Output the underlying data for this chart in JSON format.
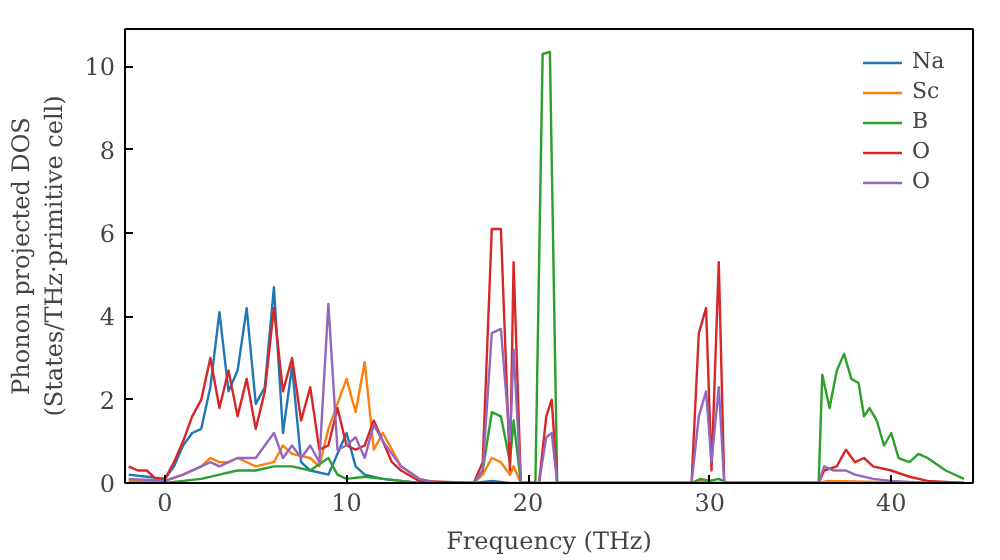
{
  "chart_data": {
    "type": "line",
    "xlabel": "Frequency (THz)",
    "ylabel": "Phonon projected DOS\n(States/THz·primitive cell)",
    "xlim": [
      -2.2,
      44.5
    ],
    "ylim": [
      0,
      10.9
    ],
    "xticks": [
      0,
      10,
      20,
      30,
      40
    ],
    "yticks": [
      0,
      2,
      4,
      6,
      8,
      10
    ],
    "grid": false,
    "legend": "top right",
    "series": [
      {
        "name": "Na",
        "color": "#1f77b4",
        "x": [
          -2,
          -1,
          0,
          0.5,
          1,
          1.5,
          2,
          2.5,
          3,
          3.5,
          4,
          4.5,
          5,
          5.5,
          6,
          6.5,
          7,
          7.5,
          8,
          9,
          10,
          10.5,
          11,
          12,
          13,
          14,
          17,
          18,
          19,
          44
        ],
        "values": [
          0.2,
          0.15,
          0.1,
          0.4,
          0.9,
          1.2,
          1.3,
          2.3,
          4.1,
          2.2,
          2.7,
          4.2,
          1.9,
          2.3,
          4.7,
          1.2,
          2.8,
          0.5,
          0.3,
          0.2,
          1.2,
          0.4,
          0.2,
          0.1,
          0.05,
          0,
          0,
          0.05,
          0,
          0
        ]
      },
      {
        "name": "Sc",
        "color": "#ff7f0e",
        "x": [
          -2,
          0,
          1,
          2,
          2.5,
          3,
          3.5,
          4,
          5,
          6,
          6.5,
          7,
          8,
          8.5,
          9,
          10,
          10.5,
          11,
          11.5,
          12,
          13,
          14,
          15,
          17,
          17.5,
          18,
          18.5,
          19,
          19.2,
          19.6,
          29,
          29.5,
          30,
          36,
          36.5,
          40,
          44
        ],
        "values": [
          0.05,
          0.05,
          0.2,
          0.4,
          0.6,
          0.5,
          0.5,
          0.6,
          0.4,
          0.5,
          0.9,
          0.7,
          0.6,
          0.4,
          1.3,
          2.5,
          1.7,
          2.9,
          0.8,
          1.2,
          0.4,
          0.1,
          0,
          0,
          0.2,
          0.6,
          0.5,
          0.2,
          0.4,
          0,
          0,
          0.05,
          0,
          0,
          0.05,
          0.02,
          0
        ]
      },
      {
        "name": "B",
        "color": "#2ca02c",
        "x": [
          -2,
          0,
          1,
          2,
          3,
          4,
          5,
          6,
          7,
          8,
          9,
          9.5,
          10,
          11,
          12,
          13,
          14,
          17,
          17.5,
          18,
          18.5,
          19,
          19.2,
          19.6,
          20.4,
          20.8,
          21.2,
          21.6,
          29,
          29.5,
          30,
          30.5,
          31,
          36,
          36.2,
          36.6,
          37,
          37.4,
          37.8,
          38.2,
          38.5,
          38.8,
          39.2,
          39.6,
          40,
          40.4,
          41,
          41.5,
          42,
          43,
          44
        ],
        "values": [
          0,
          0,
          0.05,
          0.1,
          0.2,
          0.3,
          0.3,
          0.4,
          0.4,
          0.3,
          0.6,
          0.2,
          0.1,
          0.15,
          0.1,
          0.05,
          0,
          0,
          0.3,
          1.7,
          1.6,
          0.5,
          1.5,
          0,
          0,
          10.3,
          10.35,
          0,
          0,
          0.1,
          0.05,
          0.1,
          0,
          0,
          2.6,
          1.8,
          2.7,
          3.1,
          2.5,
          2.4,
          1.6,
          1.8,
          1.5,
          0.9,
          1.2,
          0.6,
          0.5,
          0.7,
          0.6,
          0.3,
          0.1
        ]
      },
      {
        "name": "O",
        "color": "#d62728",
        "x": [
          -2,
          -1.5,
          -1,
          -0.5,
          0,
          0.5,
          1,
          1.5,
          2,
          2.5,
          3,
          3.5,
          4,
          4.5,
          5,
          5.5,
          6,
          6.5,
          7,
          7.5,
          8,
          8.5,
          9,
          9.5,
          10,
          10.5,
          11,
          11.5,
          12,
          12.5,
          13,
          14,
          17,
          17.5,
          18,
          18.5,
          19,
          19.2,
          19.6,
          20.6,
          21,
          21.3,
          21.6,
          29,
          29.4,
          29.8,
          30.1,
          30.5,
          30.8,
          36,
          36.3,
          37,
          37.5,
          38,
          38.5,
          39,
          40,
          41,
          42,
          44
        ],
        "values": [
          0.4,
          0.3,
          0.3,
          0.1,
          0.1,
          0.5,
          1.0,
          1.6,
          2.0,
          3.0,
          1.8,
          2.7,
          1.6,
          2.5,
          1.3,
          2.2,
          4.2,
          2.2,
          3.0,
          1.5,
          2.3,
          0.8,
          0.9,
          1.8,
          0.9,
          0.8,
          0.9,
          1.5,
          1.0,
          0.5,
          0.3,
          0.05,
          0,
          0.5,
          6.1,
          6.1,
          0.3,
          5.3,
          0,
          0,
          1.6,
          2.0,
          0,
          0,
          3.6,
          4.2,
          0.3,
          5.3,
          0,
          0,
          0.3,
          0.4,
          0.8,
          0.5,
          0.6,
          0.4,
          0.3,
          0.15,
          0.05,
          0
        ]
      },
      {
        "name": "O",
        "color": "#9467bd",
        "x": [
          -2,
          0,
          1,
          2,
          2.5,
          3,
          4,
          5,
          6,
          6.5,
          7,
          7.5,
          8,
          8.5,
          9,
          9.5,
          10,
          10.5,
          11,
          11.5,
          12,
          13,
          14,
          15,
          17,
          17.5,
          18,
          18.5,
          19,
          19.2,
          19.6,
          20.6,
          21,
          21.3,
          21.6,
          29,
          29.4,
          29.8,
          30.1,
          30.5,
          30.8,
          36,
          36.3,
          36.8,
          37.5,
          38,
          39,
          40,
          42
        ],
        "values": [
          0.1,
          0.05,
          0.2,
          0.4,
          0.5,
          0.4,
          0.6,
          0.6,
          1.2,
          0.6,
          0.9,
          0.6,
          0.9,
          0.5,
          4.3,
          0.8,
          0.9,
          1.1,
          0.6,
          1.4,
          1.0,
          0.4,
          0.1,
          0,
          0,
          0.3,
          3.6,
          3.7,
          1.0,
          3.2,
          0,
          0,
          1.1,
          1.2,
          0,
          0,
          1.6,
          2.2,
          0.5,
          2.3,
          0,
          0,
          0.4,
          0.3,
          0.3,
          0.2,
          0.1,
          0.05,
          0
        ]
      }
    ]
  }
}
